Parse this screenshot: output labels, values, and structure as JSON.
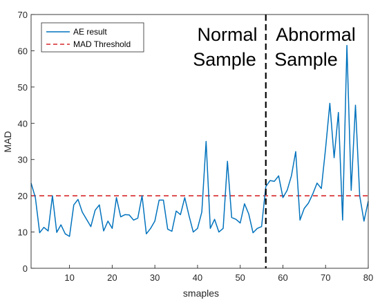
{
  "chart_data": {
    "type": "line",
    "xlabel": "smaples",
    "ylabel": "MAD",
    "xlim": [
      1,
      80
    ],
    "ylim": [
      0,
      70
    ],
    "x_ticks": [
      10,
      20,
      30,
      40,
      50,
      60,
      70,
      80
    ],
    "y_ticks": [
      0,
      10,
      20,
      30,
      40,
      50,
      60,
      70
    ],
    "grid": false,
    "legend_position": "top-left",
    "series": [
      {
        "name": "AE result",
        "color": "#0072bd",
        "x": [
          1,
          2,
          3,
          4,
          5,
          6,
          7,
          8,
          9,
          10,
          11,
          12,
          13,
          14,
          15,
          16,
          17,
          18,
          19,
          20,
          21,
          22,
          23,
          24,
          25,
          26,
          27,
          28,
          29,
          30,
          31,
          32,
          33,
          34,
          35,
          36,
          37,
          38,
          39,
          40,
          41,
          42,
          43,
          44,
          45,
          46,
          47,
          48,
          49,
          50,
          51,
          52,
          53,
          54,
          55,
          56,
          57,
          58,
          59,
          60,
          61,
          62,
          63,
          64,
          65,
          66,
          67,
          68,
          69,
          70,
          71,
          72,
          73,
          74,
          75,
          76,
          77,
          78,
          79,
          80
        ],
        "values": [
          23.5,
          19.5,
          9.8,
          11.3,
          10.3,
          20.0,
          9.9,
          12.0,
          9.5,
          8.8,
          17.5,
          19.0,
          15.5,
          13.5,
          11.5,
          16.0,
          17.5,
          10.3,
          13.0,
          11.0,
          19.5,
          14.2,
          14.8,
          14.7,
          13.3,
          13.8,
          20.0,
          9.5,
          11.0,
          13.0,
          18.8,
          18.8,
          10.8,
          10.2,
          15.8,
          14.8,
          19.5,
          14.5,
          10.0,
          11.0,
          15.5,
          35.0,
          11.0,
          13.5,
          10.0,
          11.0,
          29.5,
          14.0,
          13.5,
          12.5,
          17.8,
          15.0,
          9.8,
          11.0,
          11.5,
          22.5,
          24.2,
          24.0,
          25.5,
          19.5,
          21.5,
          25.5,
          32.2,
          13.3,
          16.5,
          18.0,
          20.5,
          23.5,
          22.0,
          33.0,
          45.5,
          30.5,
          43.0,
          13.3,
          61.5,
          21.5,
          45.0,
          20.0,
          13.0,
          18.5
        ]
      },
      {
        "name": "MAD Threshold",
        "color": "#d62728",
        "style": "dashed",
        "constant": 20
      }
    ],
    "divider": {
      "x": 56,
      "color": "#000000",
      "style": "dashed"
    },
    "annotations": {
      "normal_line1": "Normal",
      "normal_line2": "Sample",
      "abnormal_line1": "Abnormal",
      "abnormal_line2": "Sample"
    }
  }
}
